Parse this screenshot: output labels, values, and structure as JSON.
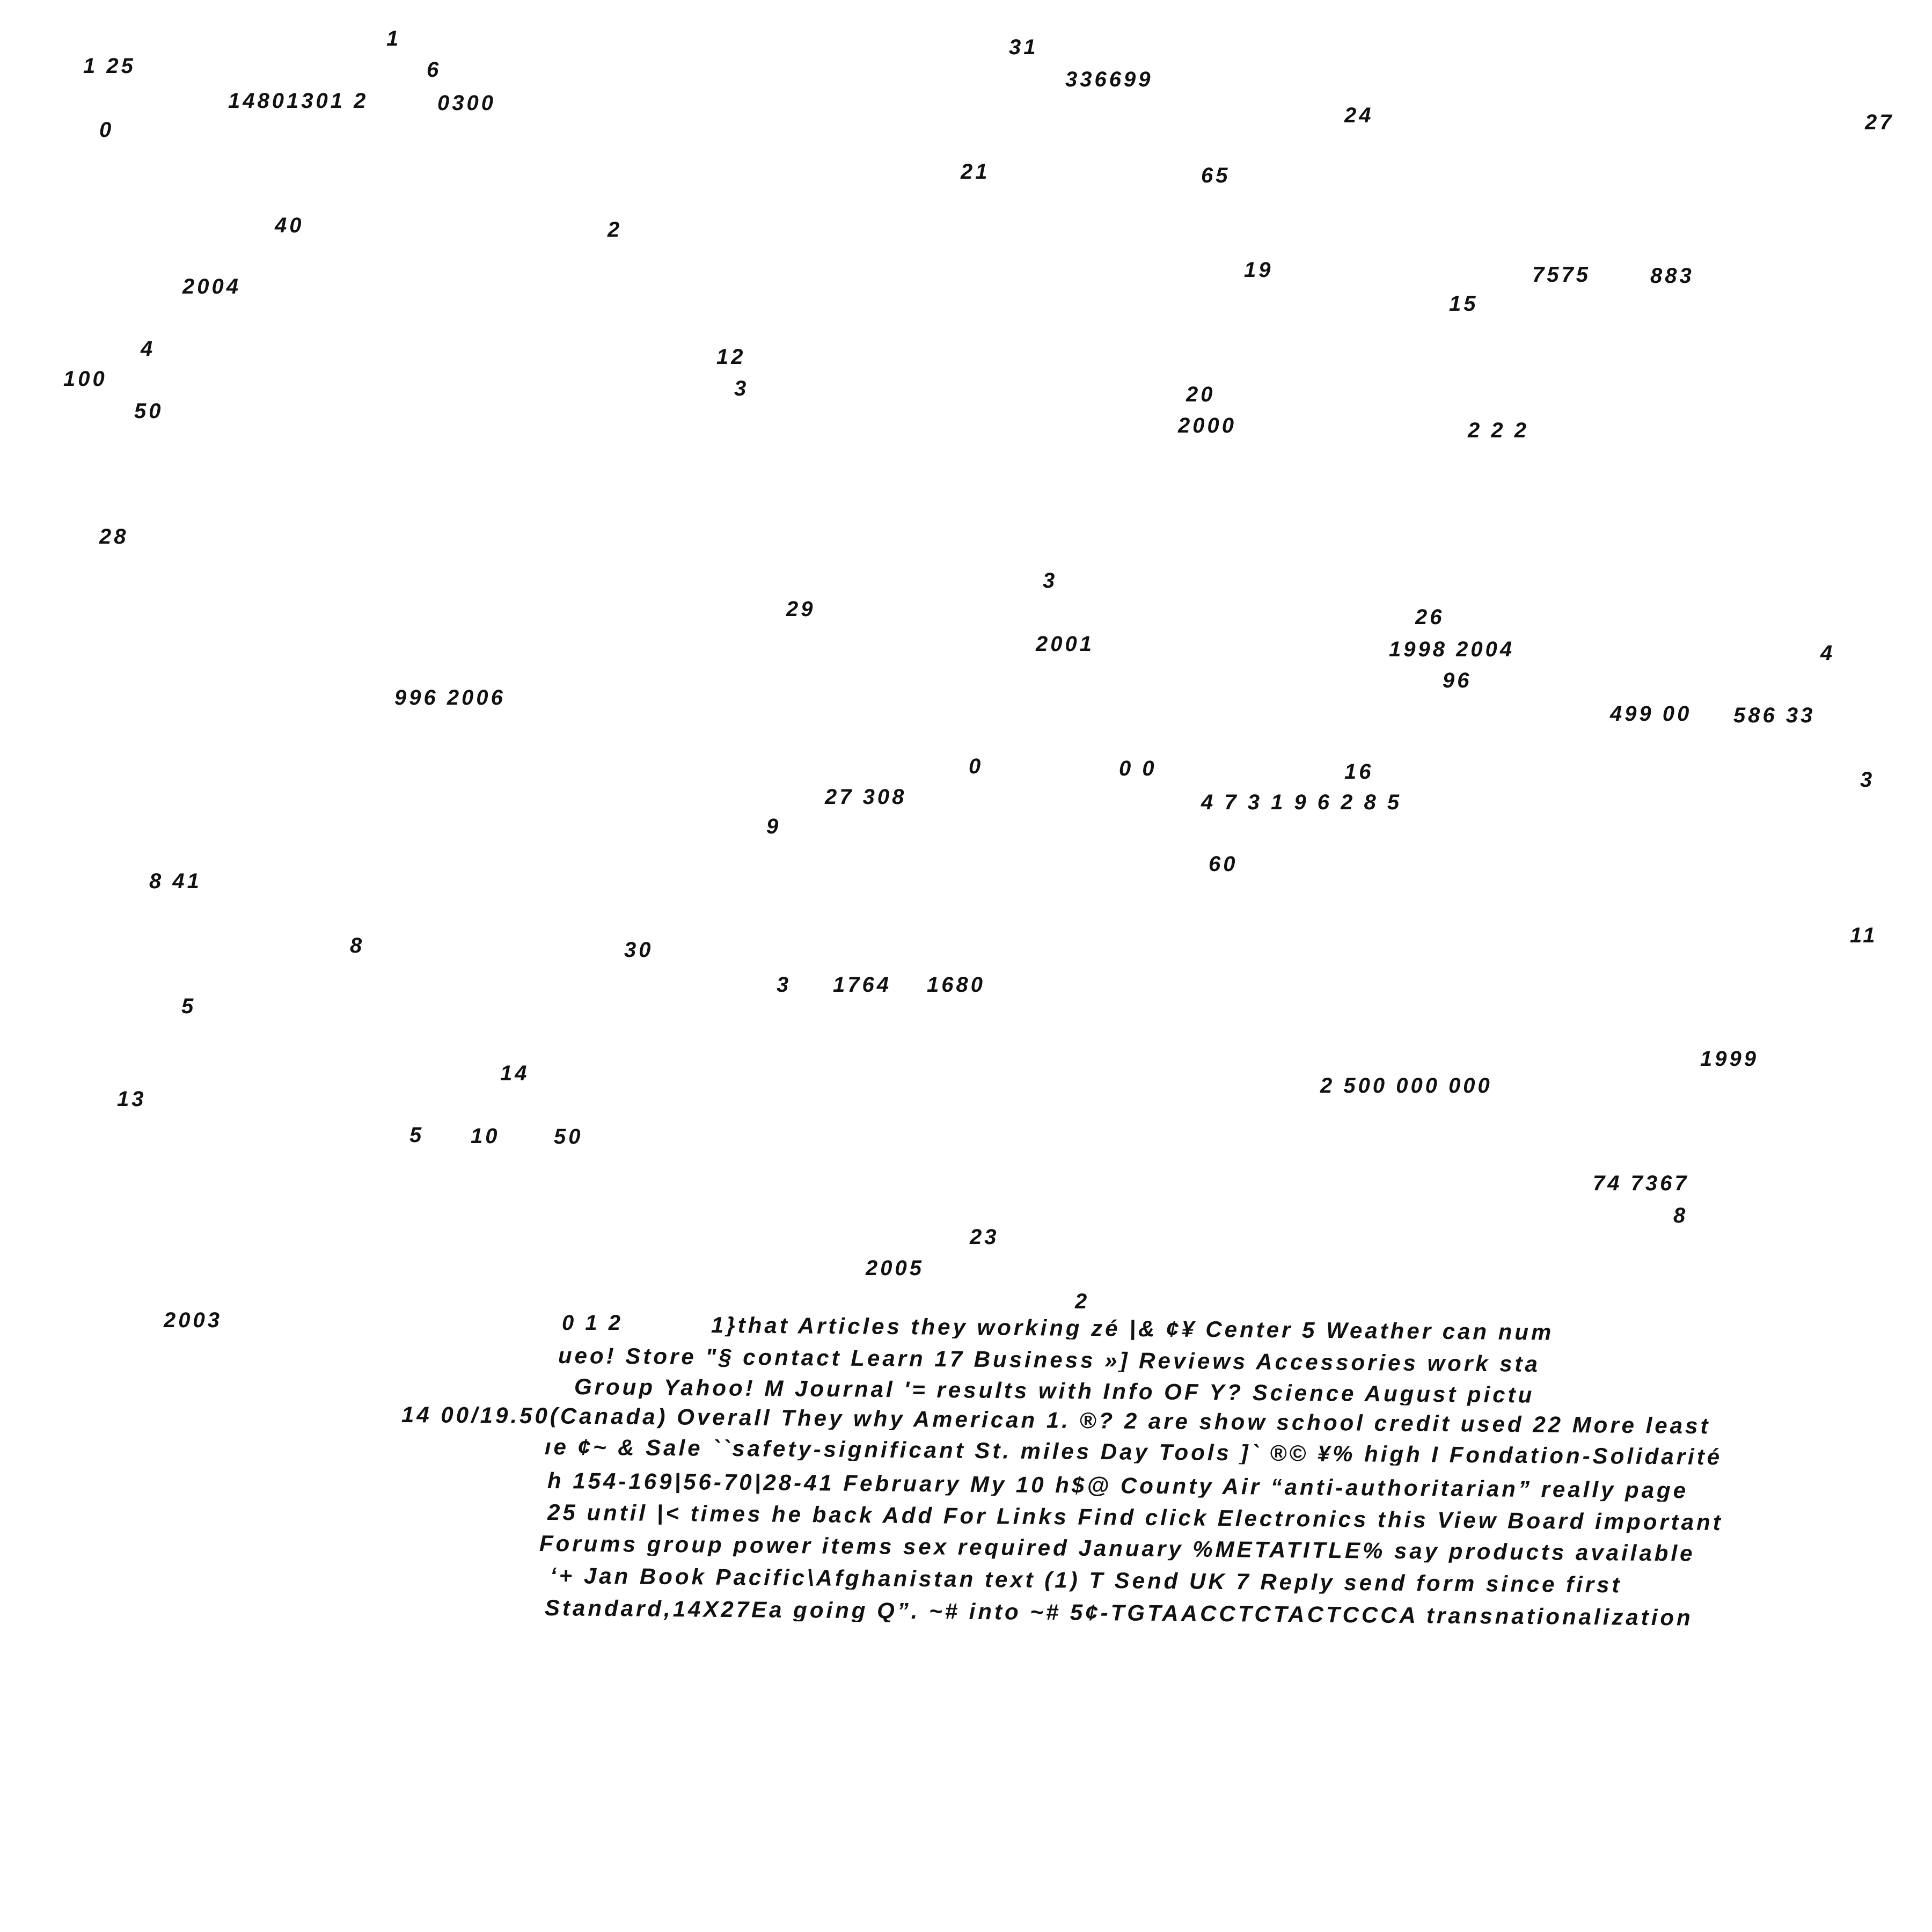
{
  "numbers": [
    "1",
    "1 25",
    "6",
    "14801301  2",
    "0300",
    "0",
    "31",
    "336699",
    "24",
    "27",
    "21",
    "65",
    "40",
    "2",
    "2004",
    "19",
    "7575",
    "883",
    "15",
    "4",
    "100",
    "50",
    "12",
    "3",
    "20",
    "2000",
    "2 2 2",
    "28",
    "3",
    "29",
    "26",
    "2001",
    "1998 2004",
    "4",
    "996  2006",
    "96",
    "499 00",
    "586 33",
    "0",
    "0 0",
    "16",
    "3",
    "27 308",
    "4 7 3 1 9 6 2 8 5",
    "9",
    "60",
    "8 41",
    "11",
    "8",
    "30",
    "3",
    "1764",
    "1680",
    "5",
    "1999",
    "14",
    "13",
    "2 500 000 000",
    "5",
    "10",
    "50",
    "74 7367",
    "8",
    "23",
    "2005",
    "2",
    "2003",
    "0 1 2"
  ],
  "text_lines": [
    "1}that Articles they working zé |& ¢¥ Center 5 Weather can num",
    "ueo! Store \"§ contact Learn 17 Business »] Reviews Accessories work sta",
    "Group Yahoo! M Journal '= results with Info OF Y? Science August pictu",
    "14 00/19.50(Canada) Overall They why American 1. ®? 2 are show school credit used 22 More least",
    "ıe ¢~ & Sale ``safety-significant St. miles Day Tools ]` ®© ¥% high I Fondation-Solidarité",
    "h 154-169|56-70|28-41 February My 10 h$@ County Air “anti-authoritarian” really page",
    "25 until |< times he back Add For Links Find click Electronics this View Board important",
    "Forums group power items sex required January %METATITLE% say products available",
    "‘+ Jan Book Pacific\\Afghanistan text (1) T Send UK 7 Reply send form since first",
    "Standard,14X27Ea going Q”. ~# into ~# 5¢-TGTAACCTCTACTCCCA transnationalization"
  ]
}
